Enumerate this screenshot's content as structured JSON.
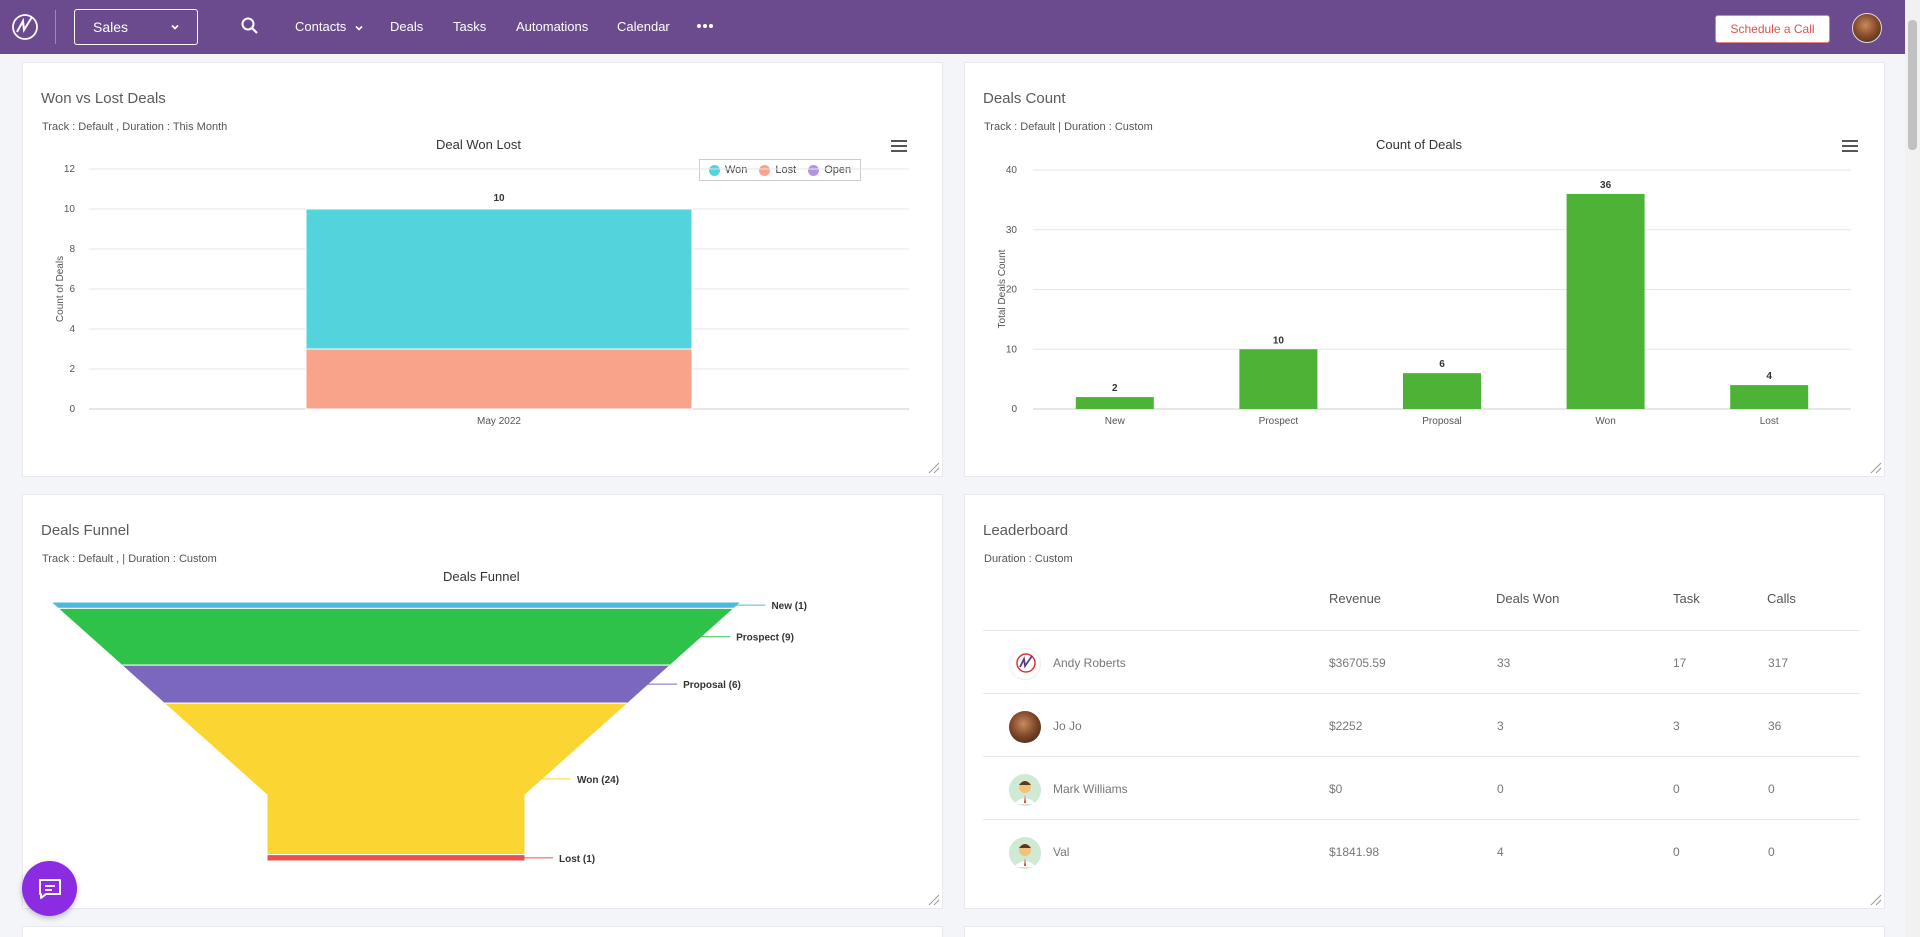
{
  "nav": {
    "pipeline": "Sales",
    "links": [
      "Contacts",
      "Deals",
      "Tasks",
      "Automations",
      "Calendar"
    ],
    "schedule_button": "Schedule a Call"
  },
  "won_lost": {
    "title": "Won vs Lost Deals",
    "subtitle": "Track : Default ,  Duration : This Month",
    "chart_title": "Deal Won Lost"
  },
  "deals_count": {
    "title": "Deals Count",
    "subtitle": "Track : Default | Duration : Custom",
    "chart_title": "Count of Deals"
  },
  "funnel": {
    "title": "Deals Funnel",
    "subtitle": "Track : Default ,  | Duration : Custom",
    "chart_title": "Deals Funnel"
  },
  "leaderboard": {
    "title": "Leaderboard",
    "subtitle": "Duration : Custom",
    "columns": [
      "Revenue",
      "Deals Won",
      "Task",
      "Calls"
    ],
    "rows": [
      {
        "name": "Andy Roberts",
        "revenue": "$36705.59",
        "deals_won": "33",
        "task": "17",
        "calls": "317"
      },
      {
        "name": "Jo Jo",
        "revenue": "$2252",
        "deals_won": "3",
        "task": "3",
        "calls": "36"
      },
      {
        "name": "Mark Williams",
        "revenue": "$0",
        "deals_won": "0",
        "task": "0",
        "calls": "0"
      },
      {
        "name": "Val",
        "revenue": "$1841.98",
        "deals_won": "4",
        "task": "0",
        "calls": "0"
      }
    ]
  },
  "colors": {
    "nav_bg": "#6b4a8d",
    "won": "#53d3db",
    "lost": "#f9a38b",
    "open": "#b195e5",
    "count_bar": "#4db336",
    "funnel_new": "#4eb7e0",
    "funnel_prospect": "#2fc24a",
    "funnel_proposal": "#7b67bd",
    "funnel_won": "#fbd632",
    "funnel_lost": "#e75151",
    "chat": "#8b2be2"
  },
  "chart_data": [
    {
      "type": "bar",
      "title": "Deal Won Lost",
      "stacked": true,
      "categories": [
        "May 2022"
      ],
      "series": [
        {
          "name": "Won",
          "values": [
            7
          ]
        },
        {
          "name": "Lost",
          "values": [
            3
          ]
        },
        {
          "name": "Open",
          "values": [
            0
          ]
        }
      ],
      "total_label": "10",
      "xlabel": "",
      "ylabel": "Count of Deals",
      "ylim": [
        0,
        12
      ],
      "yticks": [
        0,
        2,
        4,
        6,
        8,
        10,
        12
      ],
      "legend": "top-right"
    },
    {
      "type": "bar",
      "title": "Count of Deals",
      "categories": [
        "New",
        "Prospect",
        "Proposal",
        "Won",
        "Lost"
      ],
      "values": [
        2,
        10,
        6,
        36,
        4
      ],
      "xlabel": "",
      "ylabel": "Total Deals Count",
      "ylim": [
        0,
        40
      ],
      "yticks": [
        0,
        10,
        20,
        30,
        40
      ]
    },
    {
      "type": "funnel",
      "title": "Deals Funnel",
      "categories": [
        "New (1)",
        "Prospect (9)",
        "Proposal (6)",
        "Won (24)",
        "Lost (1)"
      ],
      "values": [
        1,
        9,
        6,
        24,
        1
      ]
    }
  ]
}
